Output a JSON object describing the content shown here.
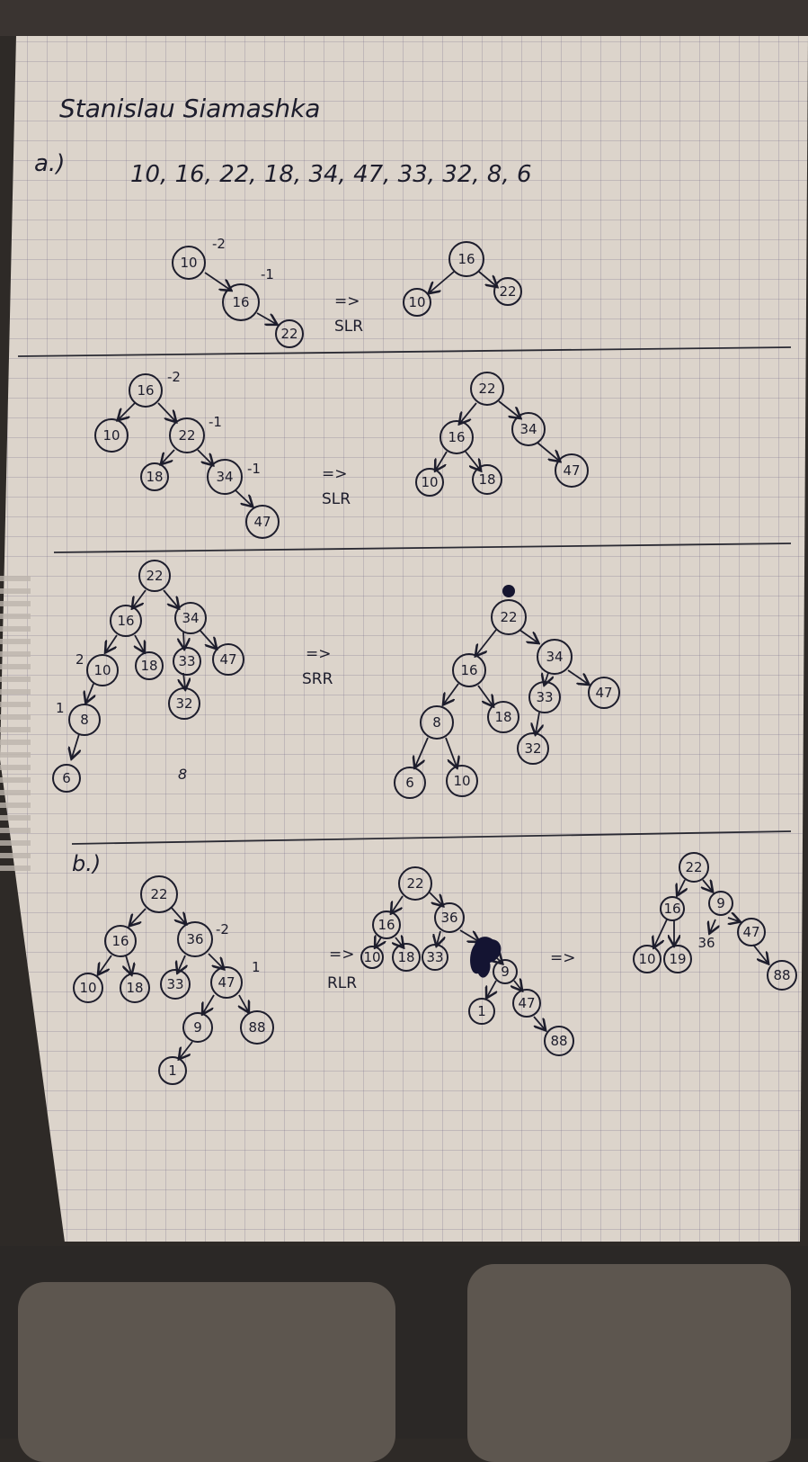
{
  "header": {
    "author": "Stanislau Siamashka",
    "part_a_label": "a.)",
    "part_b_label": "b.)",
    "sequence": "10, 16, 22, 18, 34, 47, 33, 32, 8, 6"
  },
  "arrow_symbol": "=>",
  "scenes": [
    {
      "id": "a1",
      "before": {
        "nodes": [
          {
            "label": "10",
            "bf": "-2"
          },
          {
            "label": "16",
            "bf": "-1"
          },
          {
            "label": "22",
            "bf": ""
          }
        ]
      },
      "rotation": "SLR",
      "after": {
        "nodes": [
          {
            "label": "16"
          },
          {
            "label": "10"
          },
          {
            "label": "22"
          }
        ]
      }
    },
    {
      "id": "a2",
      "before": {
        "nodes": [
          {
            "label": "16",
            "bf": "-2"
          },
          {
            "label": "10",
            "bf": ""
          },
          {
            "label": "22",
            "bf": "-1"
          },
          {
            "label": "18",
            "bf": ""
          },
          {
            "label": "34",
            "bf": "-1"
          },
          {
            "label": "47",
            "bf": ""
          }
        ]
      },
      "rotation": "SLR",
      "after": {
        "nodes": [
          {
            "label": "22"
          },
          {
            "label": "16"
          },
          {
            "label": "34"
          },
          {
            "label": "10"
          },
          {
            "label": "18"
          },
          {
            "label": "47"
          }
        ]
      }
    },
    {
      "id": "a3",
      "before": {
        "nodes": [
          {
            "label": "22",
            "bf": ""
          },
          {
            "label": "16",
            "bf": ""
          },
          {
            "label": "34",
            "bf": ""
          },
          {
            "label": "10",
            "bf": "2"
          },
          {
            "label": "18",
            "bf": ""
          },
          {
            "label": "33",
            "bf": ""
          },
          {
            "label": "47",
            "bf": ""
          },
          {
            "label": "8",
            "bf": "1"
          },
          {
            "label": "32",
            "bf": ""
          },
          {
            "label": "6",
            "bf": ""
          }
        ],
        "stray_mark": "8"
      },
      "rotation": "SRR",
      "after": {
        "nodes": [
          {
            "label": "22"
          },
          {
            "label": "16"
          },
          {
            "label": "34"
          },
          {
            "label": "8"
          },
          {
            "label": "18"
          },
          {
            "label": "33"
          },
          {
            "label": "47"
          },
          {
            "label": "6"
          },
          {
            "label": "10"
          },
          {
            "label": "32"
          }
        ]
      }
    },
    {
      "id": "b",
      "before": {
        "nodes": [
          {
            "label": "22",
            "bf": ""
          },
          {
            "label": "16",
            "bf": ""
          },
          {
            "label": "36",
            "bf": "-2"
          },
          {
            "label": "10",
            "bf": ""
          },
          {
            "label": "18",
            "bf": ""
          },
          {
            "label": "33",
            "bf": ""
          },
          {
            "label": "47",
            "bf": "1"
          },
          {
            "label": "9",
            "bf": ""
          },
          {
            "label": "88",
            "bf": ""
          },
          {
            "label": "1",
            "bf": ""
          }
        ]
      },
      "rotation": "RLR",
      "middle": {
        "nodes": [
          {
            "label": "22"
          },
          {
            "label": "16"
          },
          {
            "label": "36"
          },
          {
            "label": "10"
          },
          {
            "label": "18"
          },
          {
            "label": "33"
          },
          {
            "label": "9"
          },
          {
            "label": "1"
          },
          {
            "label": "47"
          },
          {
            "label": "88"
          }
        ]
      },
      "after": {
        "nodes": [
          {
            "label": "22"
          },
          {
            "label": "16"
          },
          {
            "label": "9"
          },
          {
            "label": "10"
          },
          {
            "label": "19"
          },
          {
            "label": "36"
          },
          {
            "label": "47"
          },
          {
            "label": "88"
          }
        ]
      }
    }
  ]
}
